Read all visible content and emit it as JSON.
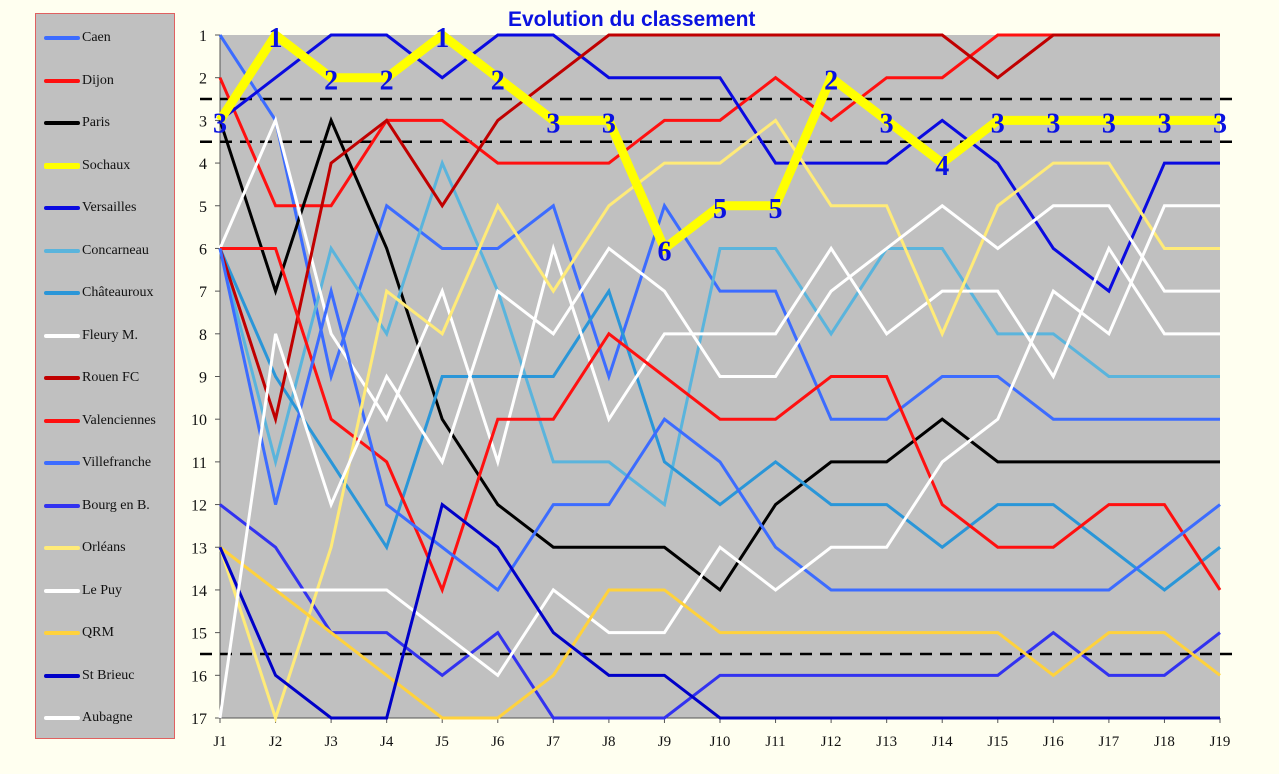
{
  "chart_data": {
    "type": "line",
    "title": "Evolution du classement",
    "xlabel": "",
    "ylabel": "",
    "categories": [
      "J1",
      "J2",
      "J3",
      "J4",
      "J5",
      "J6",
      "J7",
      "J8",
      "J9",
      "J10",
      "J11",
      "J12",
      "J13",
      "J14",
      "J15",
      "J16",
      "J17",
      "J18",
      "J19"
    ],
    "y_ticks": [
      1,
      2,
      3,
      4,
      5,
      6,
      7,
      8,
      9,
      10,
      11,
      12,
      13,
      14,
      15,
      16,
      17
    ],
    "ylim": [
      17,
      1
    ],
    "y_inverted": true,
    "grid": false,
    "legend_position": "left",
    "reference_lines": [
      2.5,
      3.5,
      15.5
    ],
    "series": [
      {
        "name": "Caen",
        "color": "#3c6cff",
        "width": 3,
        "values": [
          1,
          3,
          9,
          5,
          6,
          6,
          5,
          9,
          5,
          7,
          7,
          10,
          10,
          9,
          9,
          10,
          10,
          10,
          10
        ]
      },
      {
        "name": "Dijon",
        "color": "#ff1010",
        "width": 3,
        "values": [
          2,
          5,
          5,
          3,
          3,
          4,
          4,
          4,
          3,
          3,
          2,
          3,
          2,
          2,
          1,
          1,
          1,
          1,
          1
        ]
      },
      {
        "name": "Paris",
        "color": "#000000",
        "width": 3,
        "values": [
          3,
          7,
          3,
          6,
          10,
          12,
          13,
          13,
          13,
          14,
          12,
          11,
          11,
          10,
          11,
          11,
          11,
          11,
          11
        ]
      },
      {
        "name": "Sochaux",
        "color": "#ffff00",
        "width": 9,
        "labels": true,
        "values": [
          3,
          1,
          2,
          2,
          1,
          2,
          3,
          3,
          6,
          5,
          5,
          2,
          3,
          4,
          3,
          3,
          3,
          3,
          3
        ]
      },
      {
        "name": "Versailles",
        "color": "#0a0ae0",
        "width": 3,
        "values": [
          3,
          2,
          1,
          1,
          2,
          1,
          1,
          2,
          2,
          2,
          4,
          4,
          4,
          3,
          4,
          6,
          7,
          4,
          4
        ]
      },
      {
        "name": "Concarneau",
        "color": "#5ab4dc",
        "width": 3,
        "values": [
          6,
          11,
          6,
          8,
          4,
          7,
          11,
          11,
          12,
          6,
          6,
          8,
          6,
          6,
          8,
          8,
          9,
          9,
          9
        ]
      },
      {
        "name": "Châteauroux",
        "color": "#2a96d8",
        "width": 3,
        "values": [
          6,
          9,
          11,
          13,
          9,
          9,
          9,
          7,
          11,
          12,
          11,
          12,
          12,
          13,
          12,
          12,
          13,
          14,
          13
        ]
      },
      {
        "name": "Fleury M.",
        "color": "#ffffff",
        "width": 3,
        "values": [
          6,
          3,
          8,
          10,
          7,
          11,
          6,
          10,
          8,
          8,
          8,
          6,
          8,
          7,
          7,
          9,
          6,
          8,
          8
        ]
      },
      {
        "name": "Rouen FC",
        "color": "#c00000",
        "width": 3,
        "values": [
          6,
          10,
          4,
          3,
          5,
          3,
          2,
          1,
          1,
          1,
          1,
          1,
          1,
          1,
          2,
          1,
          1,
          1,
          1
        ]
      },
      {
        "name": "Valenciennes",
        "color": "#ff1010",
        "width": 3,
        "values": [
          6,
          6,
          10,
          11,
          14,
          10,
          10,
          8,
          9,
          10,
          10,
          9,
          9,
          12,
          13,
          13,
          12,
          12,
          14
        ]
      },
      {
        "name": "Villefranche",
        "color": "#3c6cff",
        "width": 3,
        "values": [
          6,
          12,
          7,
          12,
          13,
          14,
          12,
          12,
          10,
          11,
          13,
          14,
          14,
          14,
          14,
          14,
          14,
          13,
          12
        ]
      },
      {
        "name": "Bourg en B.",
        "color": "#3232f0",
        "width": 3,
        "values": [
          12,
          13,
          15,
          15,
          16,
          15,
          17,
          17,
          17,
          16,
          16,
          16,
          16,
          16,
          16,
          15,
          16,
          16,
          15
        ]
      },
      {
        "name": "Orléans",
        "color": "#ffeb78",
        "width": 3,
        "values": [
          13,
          17,
          13,
          7,
          8,
          5,
          7,
          5,
          4,
          4,
          3,
          5,
          5,
          8,
          5,
          4,
          4,
          6,
          6
        ]
      },
      {
        "name": "Le Puy",
        "color": "#ffffff",
        "width": 3,
        "values": [
          null,
          14,
          14,
          14,
          15,
          16,
          14,
          15,
          15,
          13,
          14,
          13,
          13,
          11,
          10,
          7,
          8,
          5,
          5
        ]
      },
      {
        "name": "QRM",
        "color": "#ffd23c",
        "width": 3,
        "values": [
          13,
          14,
          15,
          16,
          17,
          17,
          16,
          14,
          14,
          15,
          15,
          15,
          15,
          15,
          15,
          16,
          15,
          15,
          16
        ]
      },
      {
        "name": "St Brieuc",
        "color": "#0000c8",
        "width": 3,
        "values": [
          13,
          16,
          17,
          17,
          12,
          13,
          15,
          16,
          16,
          17,
          17,
          17,
          17,
          17,
          17,
          17,
          17,
          17,
          17
        ]
      },
      {
        "name": "Aubagne",
        "color": "#ffffff",
        "width": 3,
        "values": [
          17,
          8,
          12,
          9,
          11,
          7,
          8,
          6,
          7,
          9,
          9,
          7,
          6,
          5,
          6,
          5,
          5,
          7,
          7
        ]
      }
    ]
  }
}
